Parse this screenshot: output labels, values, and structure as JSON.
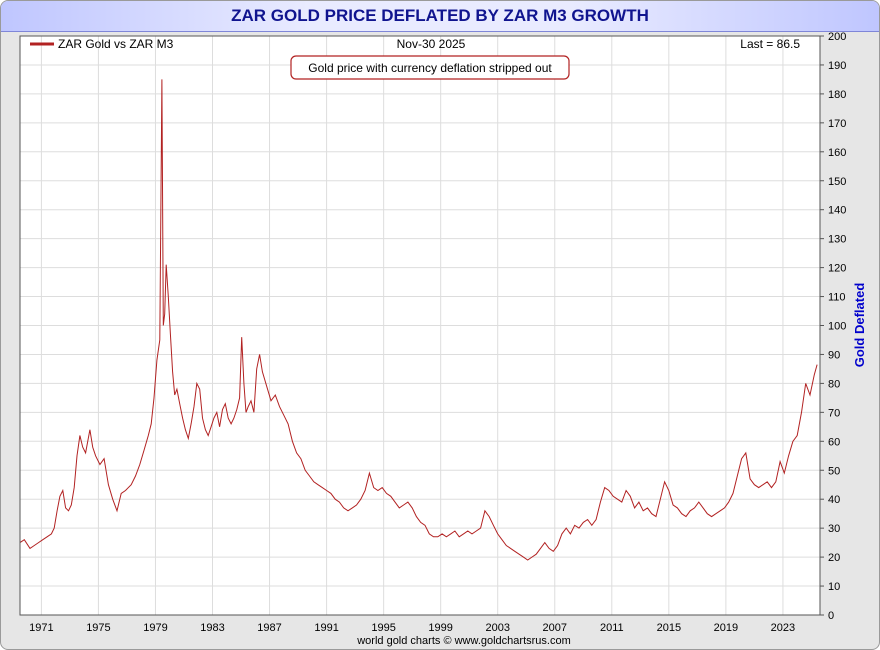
{
  "title": "ZAR GOLD PRICE DEFLATED BY ZAR M3 GROWTH",
  "header": {
    "legend_label": "ZAR Gold vs ZAR M3",
    "date": "Nov-30  2025",
    "last_value": "Last = 86.5",
    "annotation": "Gold price with currency deflation stripped out"
  },
  "footer": {
    "credit": "world gold charts © www.goldchartsrus.com"
  },
  "colors": {
    "series": "#b22222",
    "title": "#10148f",
    "axis_label": "#0000cc"
  },
  "chart_data": {
    "type": "line",
    "title": "ZAR GOLD PRICE DEFLATED BY ZAR M3 GROWTH",
    "xlabel": "",
    "ylabel": "Gold Deflated",
    "ylim": [
      0,
      200
    ],
    "xlim": [
      1970.0,
      2026.1
    ],
    "grid": true,
    "legend": "top-left",
    "x_ticks": [
      "1971",
      "1975",
      "1979",
      "1983",
      "1987",
      "1991",
      "1995",
      "1999",
      "2003",
      "2007",
      "2011",
      "2015",
      "2019",
      "2023"
    ],
    "y_ticks": [
      "0",
      "10",
      "20",
      "30",
      "40",
      "50",
      "60",
      "70",
      "80",
      "90",
      "100",
      "110",
      "120",
      "130",
      "140",
      "150",
      "160",
      "170",
      "180",
      "190",
      "200"
    ],
    "series": [
      {
        "name": "ZAR Gold vs ZAR M3",
        "x": [
          1970.0,
          1970.3,
          1970.7,
          1971.0,
          1971.3,
          1971.6,
          1971.9,
          1972.2,
          1972.4,
          1972.6,
          1972.8,
          1973.0,
          1973.2,
          1973.4,
          1973.6,
          1973.8,
          1974.0,
          1974.2,
          1974.4,
          1974.6,
          1974.9,
          1975.1,
          1975.3,
          1975.6,
          1975.9,
          1976.2,
          1976.5,
          1976.8,
          1977.1,
          1977.4,
          1977.8,
          1978.1,
          1978.4,
          1978.7,
          1979.0,
          1979.2,
          1979.4,
          1979.6,
          1979.8,
          1979.95,
          1980.05,
          1980.15,
          1980.25,
          1980.4,
          1980.55,
          1980.7,
          1980.85,
          1981.0,
          1981.2,
          1981.4,
          1981.6,
          1981.8,
          1982.0,
          1982.2,
          1982.4,
          1982.6,
          1982.8,
          1983.0,
          1983.2,
          1983.4,
          1983.6,
          1983.8,
          1984.0,
          1984.2,
          1984.4,
          1984.6,
          1984.8,
          1985.0,
          1985.2,
          1985.4,
          1985.55,
          1985.7,
          1985.85,
          1986.0,
          1986.2,
          1986.4,
          1986.6,
          1986.8,
          1987.0,
          1987.3,
          1987.6,
          1987.9,
          1988.2,
          1988.5,
          1988.8,
          1989.1,
          1989.4,
          1989.7,
          1990.0,
          1990.3,
          1990.6,
          1990.9,
          1991.2,
          1991.5,
          1991.8,
          1992.1,
          1992.4,
          1992.7,
          1993.0,
          1993.3,
          1993.6,
          1993.9,
          1994.2,
          1994.5,
          1994.8,
          1995.1,
          1995.4,
          1995.7,
          1996.0,
          1996.3,
          1996.6,
          1996.9,
          1997.2,
          1997.5,
          1997.8,
          1998.1,
          1998.4,
          1998.7,
          1999.0,
          1999.3,
          1999.6,
          1999.9,
          2000.2,
          2000.5,
          2000.8,
          2001.1,
          2001.4,
          2001.7,
          2002.0,
          2002.3,
          2002.6,
          2002.9,
          2003.2,
          2003.5,
          2003.8,
          2004.1,
          2004.4,
          2004.7,
          2005.0,
          2005.3,
          2005.6,
          2005.9,
          2006.2,
          2006.5,
          2006.8,
          2007.1,
          2007.4,
          2007.7,
          2008.0,
          2008.3,
          2008.6,
          2008.9,
          2009.2,
          2009.5,
          2009.8,
          2010.1,
          2010.4,
          2010.7,
          2011.0,
          2011.3,
          2011.6,
          2011.9,
          2012.2,
          2012.5,
          2012.8,
          2013.1,
          2013.4,
          2013.7,
          2014.0,
          2014.3,
          2014.6,
          2014.9,
          2015.2,
          2015.5,
          2015.8,
          2016.1,
          2016.4,
          2016.7,
          2017.0,
          2017.3,
          2017.6,
          2017.9,
          2018.2,
          2018.5,
          2018.8,
          2019.1,
          2019.4,
          2019.7,
          2020.0,
          2020.3,
          2020.6,
          2020.9,
          2021.2,
          2021.5,
          2021.8,
          2022.1,
          2022.4,
          2022.7,
          2023.0,
          2023.3,
          2023.6,
          2023.9,
          2024.2,
          2024.5,
          2024.8,
          2025.1,
          2025.4,
          2025.7,
          2025.9
        ],
        "values": [
          25,
          26,
          23,
          24,
          25,
          26,
          27,
          28,
          30,
          36,
          41,
          43,
          37,
          36,
          38,
          44,
          55,
          62,
          58,
          56,
          64,
          58,
          55,
          52,
          54,
          45,
          40,
          36,
          42,
          43,
          45,
          48,
          52,
          57,
          62,
          66,
          75,
          88,
          95,
          185,
          100,
          104,
          121,
          110,
          97,
          84,
          76,
          78,
          73,
          68,
          64,
          61,
          66,
          72,
          80,
          78,
          68,
          64,
          62,
          65,
          68,
          70,
          65,
          71,
          73,
          68,
          66,
          68,
          71,
          75,
          96,
          80,
          70,
          72,
          74,
          70,
          85,
          90,
          84,
          79,
          74,
          76,
          72,
          69,
          66,
          60,
          56,
          54,
          50,
          48,
          46,
          45,
          44,
          43,
          42,
          40,
          39,
          37,
          36,
          37,
          38,
          40,
          43,
          49,
          44,
          43,
          44,
          42,
          41,
          39,
          37,
          38,
          39,
          37,
          34,
          32,
          31,
          28,
          27,
          27,
          28,
          27,
          28,
          29,
          27,
          28,
          29,
          28,
          29,
          30,
          36,
          34,
          31,
          28,
          26,
          24,
          23,
          22,
          21,
          20,
          19,
          20,
          21,
          23,
          25,
          23,
          22,
          24,
          28,
          30,
          28,
          31,
          30,
          32,
          33,
          31,
          33,
          39,
          44,
          43,
          41,
          40,
          39,
          43,
          41,
          37,
          39,
          36,
          37,
          35,
          34,
          40,
          46,
          43,
          38,
          37,
          35,
          34,
          36,
          37,
          39,
          37,
          35,
          34,
          35,
          36,
          37,
          39,
          42,
          48,
          54,
          56,
          47,
          45,
          44,
          45,
          46,
          44,
          46,
          53,
          49,
          55,
          60,
          62,
          70,
          80,
          76,
          83,
          86.5
        ]
      }
    ]
  }
}
